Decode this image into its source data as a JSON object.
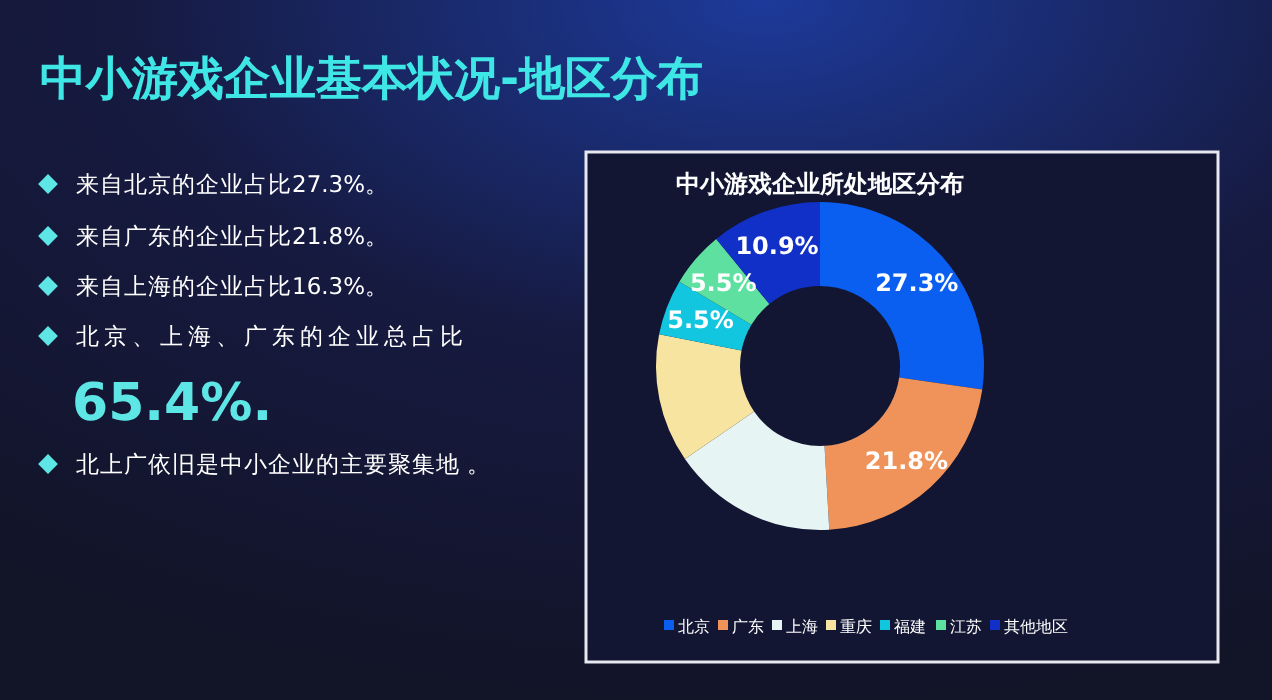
{
  "chart_data": {
    "type": "donut",
    "title": "中小游戏企业基本状况-地区分布",
    "subtitle": "中小游戏企业所处地区分布",
    "annotations": [
      "来自北京的企业占比27.3%。",
      "来自广东的企业占比21.8%。",
      "来自上海的企业占比16.3%。",
      "北京、上海、广东的企业总占比\n65.4%.",
      "北上广依旧是中小企业的主要聚集地 。"
    ],
    "categories": [
      "北京",
      "广东",
      "上海",
      "重庆",
      "福建",
      "江苏",
      "其他地区"
    ],
    "values": [
      27.3,
      21.8,
      16.3,
      12.7,
      5.5,
      5.5,
      10.9
    ],
    "value_labels": [
      "27.3%",
      "21.8%",
      null,
      null,
      "5.5%",
      "5.5%",
      "10.9%"
    ],
    "colors": [
      "#0a5ff0",
      "#f0935a",
      "#e6f4f4",
      "#f7e4a0",
      "#12c6e0",
      "#5de0a0",
      "#1030c8"
    ],
    "legend": "bottom"
  }
}
